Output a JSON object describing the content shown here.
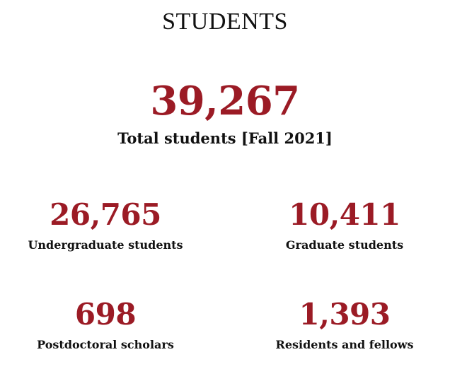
{
  "title": "STUDENTS",
  "accent_color": "#9b1b25",
  "total": {
    "value": "39,267",
    "label": "Total students [Fall 2021]"
  },
  "stats": [
    {
      "value": "26,765",
      "label": "Undergraduate students"
    },
    {
      "value": "10,411",
      "label": "Graduate students"
    },
    {
      "value": "698",
      "label": "Postdoctoral scholars"
    },
    {
      "value": "1,393",
      "label": "Residents and fellows"
    }
  ]
}
